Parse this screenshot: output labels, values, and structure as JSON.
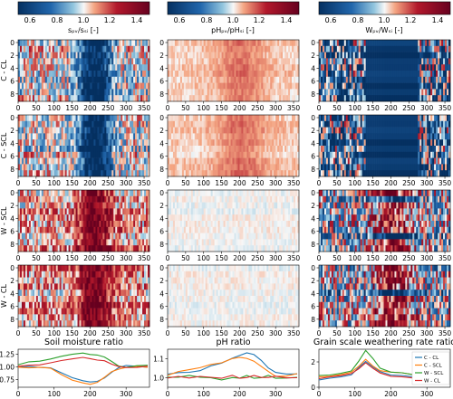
{
  "chart_data": {
    "type": "heatmap",
    "colormap": {
      "low": "#053061",
      "mid": "#f7f7f7",
      "high": "#67001f"
    },
    "colorbars": [
      {
        "label": "sₚᵥ/sₛᵢ [-]",
        "ticks": [
          "0.6",
          "0.8",
          "1.0",
          "1.2",
          "1.4"
        ],
        "range": [
          0.5,
          1.5
        ]
      },
      {
        "label": "pHₚᵥ/pHₛᵢ [-]",
        "ticks": [
          "0.6",
          "0.8",
          "1.0",
          "1.2",
          "1.4"
        ],
        "range": [
          0.5,
          1.5
        ]
      },
      {
        "label": "Wₚᵥ/Wₛᵢ [-]",
        "ticks": [
          "0.6",
          "0.8",
          "1.0",
          "1.2",
          "1.4"
        ],
        "range": [
          0.5,
          1.5
        ]
      }
    ],
    "row_labels": [
      "C - CL",
      "C - SCL",
      "W - SCL",
      "W - CL"
    ],
    "heatmap_axes": {
      "x_ticks": [
        "0",
        "50",
        "100",
        "150",
        "200",
        "250",
        "300",
        "350"
      ],
      "y_ticks": [
        "0",
        "2",
        "4",
        "6",
        "8"
      ],
      "xlim": [
        0,
        365
      ],
      "ylim": [
        0,
        9
      ]
    },
    "line_panels": [
      {
        "title": "Soil moisture ratio",
        "x_ticks": [
          "0",
          "100",
          "200",
          "300"
        ],
        "y_ticks": [
          "0.75",
          "1.00",
          "1.25"
        ],
        "ylim": [
          0.6,
          1.35
        ],
        "series": [
          {
            "name": "C - CL",
            "color": "#1f77b4",
            "x": [
              0,
              30,
              60,
              90,
              120,
              150,
              180,
              200,
              220,
              240,
              260,
              280,
              300,
              330,
              360
            ],
            "y": [
              1.0,
              1.02,
              1.0,
              0.98,
              0.88,
              0.78,
              0.72,
              0.7,
              0.72,
              0.78,
              0.9,
              0.98,
              1.02,
              1.02,
              1.0
            ]
          },
          {
            "name": "C - SCL",
            "color": "#ff7f0e",
            "x": [
              0,
              30,
              60,
              90,
              120,
              150,
              180,
              200,
              220,
              240,
              260,
              280,
              300,
              330,
              360
            ],
            "y": [
              1.0,
              0.98,
              1.0,
              0.97,
              0.86,
              0.75,
              0.68,
              0.66,
              0.7,
              0.8,
              0.9,
              0.96,
              1.0,
              1.01,
              1.0
            ]
          },
          {
            "name": "W - SCL",
            "color": "#2ca02c",
            "x": [
              0,
              30,
              60,
              90,
              120,
              150,
              180,
              200,
              220,
              240,
              260,
              280,
              300,
              330,
              360
            ],
            "y": [
              1.05,
              1.1,
              1.12,
              1.15,
              1.22,
              1.26,
              1.27,
              1.25,
              1.24,
              1.2,
              1.1,
              1.02,
              1.0,
              1.02,
              1.04
            ]
          },
          {
            "name": "W - CL",
            "color": "#d62728",
            "x": [
              0,
              30,
              60,
              90,
              120,
              150,
              180,
              200,
              220,
              240,
              260,
              280,
              300,
              330,
              360
            ],
            "y": [
              1.02,
              1.04,
              1.05,
              1.08,
              1.12,
              1.15,
              1.18,
              1.16,
              1.14,
              1.12,
              1.06,
              1.0,
              0.98,
              1.0,
              1.02
            ]
          }
        ]
      },
      {
        "title": "pH ratio",
        "x_ticks": [
          "0",
          "100",
          "200",
          "300"
        ],
        "y_ticks": [
          "1.0",
          "1.1"
        ],
        "ylim": [
          0.95,
          1.15
        ],
        "series": [
          {
            "name": "C - CL",
            "color": "#1f77b4",
            "x": [
              0,
              30,
              60,
              90,
              120,
              150,
              180,
              200,
              220,
              240,
              260,
              280,
              300,
              330,
              360
            ],
            "y": [
              1.02,
              1.03,
              1.03,
              1.04,
              1.06,
              1.08,
              1.1,
              1.12,
              1.13,
              1.12,
              1.09,
              1.05,
              1.03,
              1.02,
              1.02
            ]
          },
          {
            "name": "C - SCL",
            "color": "#ff7f0e",
            "x": [
              0,
              30,
              60,
              90,
              120,
              150,
              180,
              200,
              220,
              240,
              260,
              280,
              300,
              330,
              360
            ],
            "y": [
              1.01,
              1.03,
              1.04,
              1.05,
              1.07,
              1.08,
              1.1,
              1.11,
              1.1,
              1.09,
              1.06,
              1.03,
              1.01,
              1.01,
              1.02
            ]
          },
          {
            "name": "W - SCL",
            "color": "#2ca02c",
            "x": [
              0,
              30,
              60,
              90,
              120,
              150,
              180,
              200,
              220,
              240,
              260,
              280,
              300,
              330,
              360
            ],
            "y": [
              1.0,
              1.0,
              1.01,
              1.0,
              1.0,
              0.99,
              1.0,
              1.0,
              1.01,
              1.0,
              1.0,
              1.01,
              1.0,
              1.0,
              1.0
            ]
          },
          {
            "name": "W - CL",
            "color": "#d62728",
            "x": [
              0,
              30,
              60,
              90,
              120,
              150,
              180,
              200,
              220,
              240,
              260,
              280,
              300,
              330,
              360
            ],
            "y": [
              1.0,
              1.01,
              1.0,
              1.01,
              1.0,
              1.0,
              1.01,
              1.0,
              1.0,
              1.01,
              1.0,
              1.0,
              1.01,
              1.0,
              1.0
            ]
          }
        ]
      },
      {
        "title": "Grain scale weathering rate ratio",
        "x_ticks": [
          "0",
          "100",
          "200",
          "300"
        ],
        "y_ticks": [
          "0",
          "2"
        ],
        "ylim": [
          0,
          3
        ],
        "legend_position": "center-right",
        "series": [
          {
            "name": "C - CL",
            "color": "#1f77b4",
            "x": [
              0,
              30,
              60,
              90,
              110,
              130,
              150,
              170,
              200,
              230,
              260,
              290,
              320,
              360
            ],
            "y": [
              0.6,
              0.7,
              0.8,
              1.0,
              1.5,
              2.0,
              1.6,
              1.2,
              1.0,
              0.9,
              0.8,
              0.7,
              0.6,
              0.6
            ]
          },
          {
            "name": "C - SCL",
            "color": "#ff7f0e",
            "x": [
              0,
              30,
              60,
              90,
              110,
              130,
              150,
              170,
              200,
              230,
              260,
              290,
              320,
              360
            ],
            "y": [
              0.8,
              0.9,
              1.0,
              1.2,
              1.6,
              2.2,
              1.7,
              1.3,
              1.2,
              1.1,
              1.0,
              0.9,
              0.8,
              0.8
            ]
          },
          {
            "name": "W - SCL",
            "color": "#2ca02c",
            "x": [
              0,
              30,
              60,
              90,
              110,
              130,
              150,
              170,
              200,
              230,
              260,
              290,
              320,
              360
            ],
            "y": [
              0.9,
              1.0,
              1.1,
              1.3,
              2.0,
              2.9,
              2.3,
              1.5,
              1.2,
              1.1,
              1.0,
              0.9,
              0.9,
              0.9
            ]
          },
          {
            "name": "W - CL",
            "color": "#d62728",
            "x": [
              0,
              30,
              60,
              90,
              110,
              130,
              150,
              170,
              200,
              230,
              260,
              290,
              320,
              360
            ],
            "y": [
              0.7,
              0.8,
              0.9,
              1.1,
              1.4,
              1.9,
              1.5,
              1.1,
              0.9,
              0.8,
              0.7,
              0.7,
              0.6,
              0.6
            ]
          }
        ]
      }
    ]
  }
}
